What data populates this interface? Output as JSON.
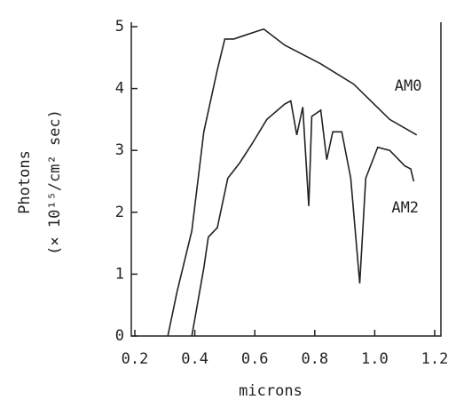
{
  "chart_data": {
    "type": "line",
    "xlabel": "microns",
    "ylabel": "Photons",
    "ylabel_units": "(× 10¹⁵/cm² sec)",
    "xlim": [
      0.2,
      1.2
    ],
    "xticks": [
      0.2,
      0.4,
      0.6,
      0.8,
      {
        "value": 1,
        "label": "1.0"
      },
      1.2
    ],
    "ylim": [
      0,
      5
    ],
    "yticks": [
      0,
      1,
      2,
      3,
      4,
      5
    ],
    "series": [
      {
        "name": "AM0",
        "color": "#222222",
        "x": [
          0.31,
          0.34,
          0.39,
          0.43,
          0.475,
          0.5,
          0.53,
          0.56,
          0.61,
          0.63,
          0.7,
          0.82,
          0.93,
          1.05,
          1.14
        ],
        "values": [
          0,
          0.7,
          1.7,
          3.3,
          4.3,
          4.8,
          4.8,
          4.85,
          4.93,
          4.96,
          4.7,
          4.4,
          4.07,
          3.5,
          3.25
        ]
      },
      {
        "name": "AM2",
        "color": "#222222",
        "x": [
          0.39,
          0.43,
          0.445,
          0.475,
          0.51,
          0.55,
          0.59,
          0.64,
          0.7,
          0.72,
          0.74,
          0.76,
          0.78,
          0.79,
          0.82,
          0.84,
          0.86,
          0.89,
          0.92,
          0.95,
          0.97,
          1.01,
          1.05,
          1.1,
          1.12,
          1.13
        ],
        "values": [
          0,
          1.1,
          1.6,
          1.75,
          2.55,
          2.8,
          3.1,
          3.5,
          3.75,
          3.8,
          3.25,
          3.7,
          2.1,
          3.55,
          3.65,
          2.85,
          3.3,
          3.3,
          2.55,
          0.85,
          2.55,
          3.05,
          3.0,
          2.75,
          2.7,
          2.5
        ]
      }
    ]
  }
}
